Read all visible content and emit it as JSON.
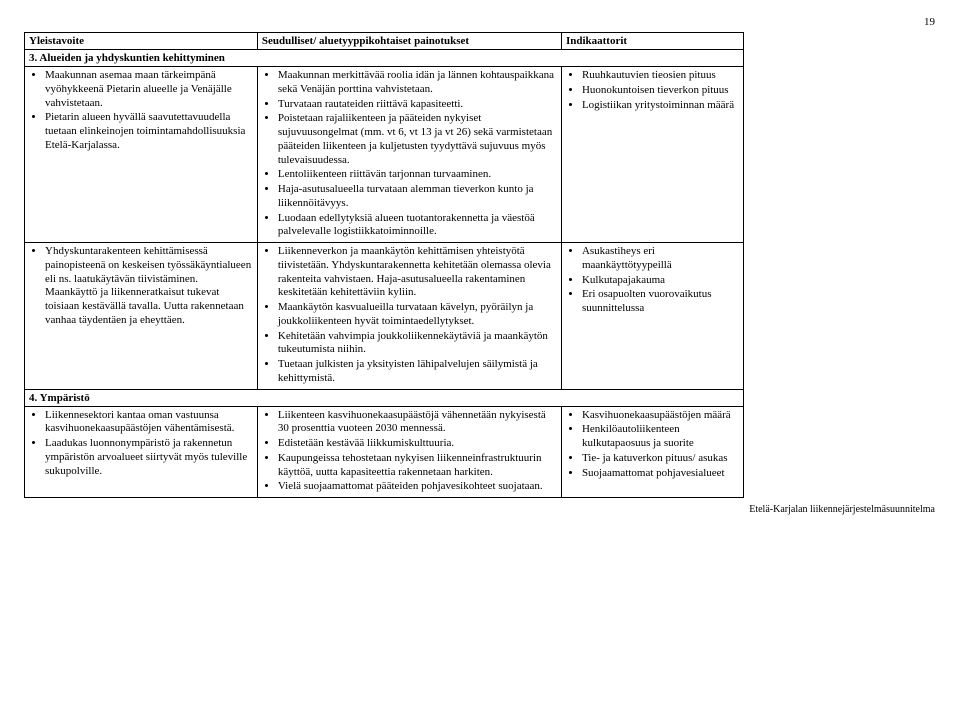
{
  "page_number": "19",
  "footer": "Etelä-Karjalan liikennejärjestelmäsuunnitelma",
  "headers": {
    "col1": "Yleistavoite",
    "col2": "Seudulliset/ aluetyyppikohtaiset painotukset",
    "col3": "Indikaattorit"
  },
  "section3_title": "3. Alueiden ja yhdyskuntien kehittyminen",
  "row3a": {
    "col1": [
      "Maakunnan asemaa maan tärkeimpänä vyöhykkeenä Pietarin alueelle ja Venäjälle vahvistetaan.",
      "Pietarin alueen hyvällä saavutettavuudella tuetaan elinkeinojen toimintamahdollisuuksia Etelä-Karjalassa."
    ],
    "col2": [
      "Maakunnan merkittävää roolia idän ja lännen kohtauspaikkana sekä Venäjän porttina vahvistetaan.",
      "Turvataan rautateiden riittävä kapasiteetti.",
      "Poistetaan rajaliikenteen ja pääteiden nykyiset sujuvuusongelmat (mm. vt 6, vt 13 ja vt 26) sekä varmistetaan pääteiden liikenteen ja kuljetusten tyydyttävä sujuvuus myös tulevaisuudessa.",
      "Lentoliikenteen riittävän tarjonnan turvaaminen.",
      "Haja-asutusalueella turvataan alemman tieverkon kunto ja liikennöitävyys.",
      "Luodaan edellytyksiä alueen tuotantorakennetta ja väestöä palvelevalle logistiikkatoiminnoille."
    ],
    "col3": [
      "Ruuhkautuvien tieosien pituus",
      "Huonokuntoisen tieverkon pituus",
      "Logistiikan yritystoiminnan määrä"
    ]
  },
  "row3b": {
    "col1": [
      "Yhdyskuntarakenteen kehittämisessä painopisteenä on keskeisen työssäkäyntialueen eli ns. laatukäytävän tiivistäminen. Maankäyttö ja liikenneratkaisut tukevat toisiaan kestävällä tavalla. Uutta rakennetaan vanhaa täydentäen ja eheyttäen."
    ],
    "col2": [
      "Liikenneverkon ja maankäytön kehittämisen yhteistyötä tiivistetään. Yhdyskuntarakennetta kehitetään olemassa olevia rakenteita vahvistaen. Haja-asutusalueella rakentaminen keskitetään kehitettäviin kyliin.",
      "Maankäytön kasvualueilla turvataan kävelyn, pyöräilyn ja joukkoliikenteen hyvät toimintaedellytykset.",
      "Kehitetään vahvimpia joukkoliikennekäytäviä ja maankäytön tukeutumista niihin.",
      "Tuetaan julkisten ja yksityisten lähipalvelujen säilymistä ja kehittymistä."
    ],
    "col3": [
      "Asukastiheys eri maankäyttötyypeillä",
      "Kulkutapajakauma",
      "Eri osapuolten vuorovaikutus suunnittelussa"
    ]
  },
  "section4_title": "4. Ympäristö",
  "row4": {
    "col1": [
      "Liikennesektori kantaa oman vastuunsa kasvihuonekaasupäästöjen vähentämisestä.",
      "Laadukas luonnonympäristö ja rakennetun ympäristön arvoalueet siirtyvät myös tuleville sukupolville."
    ],
    "col2": [
      "Liikenteen kasvihuonekaasupäästöjä vähennetään nykyisestä 30 prosenttia vuoteen 2030 mennessä.",
      "Edistetään kestävää liikkumiskulttuuria.",
      "Kaupungeissa tehostetaan nykyisen liikenneinfrastruktuurin käyttöä, uutta kapasiteettia rakennetaan harkiten.",
      "Vielä suojaamattomat pääteiden pohjavesikohteet suojataan."
    ],
    "col3": [
      "Kasvihuonekaasupäästöjen määrä",
      "Henkilöautoliikenteen kulkutapaosuus ja suorite",
      "Tie- ja katuverkon pituus/ asukas",
      "Suojaamattomat pohjavesialueet"
    ]
  }
}
